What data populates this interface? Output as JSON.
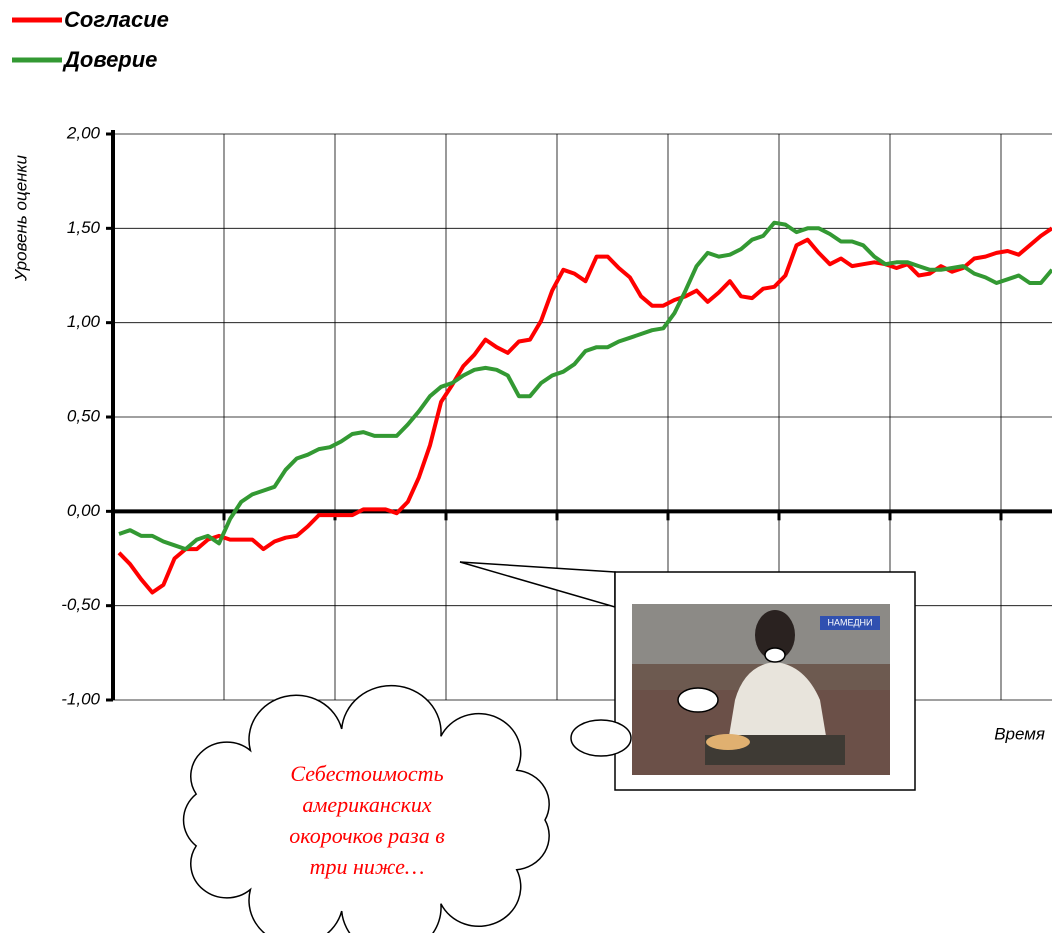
{
  "chart_data": {
    "type": "line",
    "x_label": "Время",
    "y_label": "Уровень оценки",
    "categories": [
      null,
      null,
      null,
      null,
      null,
      null,
      null,
      null,
      null,
      null,
      null,
      null,
      null,
      null,
      null,
      null,
      null,
      null,
      null,
      null,
      null,
      null,
      null,
      null,
      null,
      null,
      null,
      null,
      null,
      null,
      null,
      null,
      null,
      null,
      null,
      null,
      null,
      null,
      null,
      null,
      null,
      null,
      null,
      null,
      null,
      null,
      null,
      null,
      null,
      null,
      null,
      null,
      null,
      null,
      null,
      null,
      null,
      null,
      null,
      null,
      null,
      null,
      null,
      null,
      null,
      null,
      null,
      null,
      null,
      null,
      null,
      null,
      null,
      null,
      null,
      null,
      null,
      null,
      null,
      null,
      null,
      null,
      null,
      null,
      null
    ],
    "series": [
      {
        "name": "Согласие",
        "color": "#ff0000",
        "values": [
          -0.22,
          -0.28,
          -0.36,
          -0.43,
          -0.39,
          -0.25,
          -0.2,
          -0.2,
          -0.15,
          -0.13,
          -0.15,
          -0.15,
          -0.15,
          -0.2,
          -0.16,
          -0.14,
          -0.13,
          -0.08,
          -0.02,
          -0.02,
          -0.02,
          -0.02,
          0.01,
          0.01,
          0.01,
          -0.01,
          0.05,
          0.18,
          0.35,
          0.58,
          0.67,
          0.77,
          0.83,
          0.91,
          0.87,
          0.84,
          0.9,
          0.91,
          1.01,
          1.17,
          1.28,
          1.26,
          1.22,
          1.35,
          1.35,
          1.29,
          1.24,
          1.14,
          1.09,
          1.09,
          1.12,
          1.14,
          1.17,
          1.11,
          1.16,
          1.22,
          1.14,
          1.13,
          1.18,
          1.19,
          1.25,
          1.41,
          1.44,
          1.37,
          1.31,
          1.34,
          1.3,
          1.31,
          1.32,
          1.31,
          1.29,
          1.31,
          1.25,
          1.26,
          1.3,
          1.27,
          1.29,
          1.34,
          1.35,
          1.37,
          1.38,
          1.36,
          1.41,
          1.46,
          1.5
        ]
      },
      {
        "name": "Доверие",
        "color": "#339933",
        "values": [
          -0.12,
          -0.1,
          -0.13,
          -0.13,
          -0.16,
          -0.18,
          -0.2,
          -0.15,
          -0.13,
          -0.17,
          -0.04,
          0.05,
          0.09,
          0.11,
          0.13,
          0.22,
          0.28,
          0.3,
          0.33,
          0.34,
          0.37,
          0.41,
          0.42,
          0.4,
          0.4,
          0.4,
          0.46,
          0.53,
          0.61,
          0.66,
          0.68,
          0.72,
          0.75,
          0.76,
          0.75,
          0.72,
          0.61,
          0.61,
          0.68,
          0.72,
          0.74,
          0.78,
          0.85,
          0.87,
          0.87,
          0.9,
          0.92,
          0.94,
          0.96,
          0.97,
          1.05,
          1.17,
          1.3,
          1.37,
          1.35,
          1.36,
          1.39,
          1.44,
          1.46,
          1.53,
          1.52,
          1.48,
          1.5,
          1.5,
          1.47,
          1.43,
          1.43,
          1.41,
          1.35,
          1.31,
          1.32,
          1.32,
          1.3,
          1.28,
          1.28,
          1.29,
          1.3,
          1.26,
          1.24,
          1.21,
          1.23,
          1.25,
          1.21,
          1.21,
          1.28
        ]
      }
    ],
    "ylim": [
      -1,
      2
    ],
    "yticks": [
      {
        "value": -1,
        "label": "-1,00"
      },
      {
        "value": -0.5,
        "label": "-0,50"
      },
      {
        "value": 0,
        "label": "0,00"
      },
      {
        "value": 0.5,
        "label": "0,50"
      },
      {
        "value": 1,
        "label": "1,00"
      },
      {
        "value": 1.5,
        "label": "1,50"
      },
      {
        "value": 2,
        "label": "2,00"
      }
    ],
    "grid": true,
    "annotation_lines": [
      "Себестоимость",
      "американских",
      "окорочков раза в",
      "три ниже…"
    ],
    "photo_caption": "НАМЕДНИ"
  }
}
